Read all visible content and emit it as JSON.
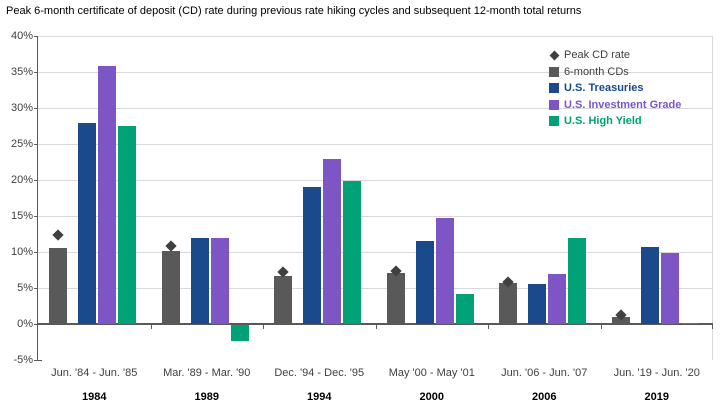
{
  "title": "Peak 6-month certificate of deposit (CD) rate during previous rate hiking cycles and subsequent 12-month total returns",
  "colors": {
    "peak_diamond": "#404040",
    "cd_bar": "#595959",
    "treasuries": "#1b4a8c",
    "investment_grade": "#7d55c5",
    "high_yield": "#00a176",
    "gridline": "#d9d9d9",
    "zero_line": "#595959",
    "axis_text": "#404040"
  },
  "legend": [
    {
      "label": "Peak CD rate",
      "marker": "diamond",
      "color": "#404040",
      "text_color": "#404040",
      "bold": false
    },
    {
      "label": "6-month CDs",
      "marker": "square",
      "color": "#595959",
      "text_color": "#404040",
      "bold": false
    },
    {
      "label": "U.S. Treasuries",
      "marker": "square",
      "color": "#1b4a8c",
      "text_color": "#1b4a8c",
      "bold": true
    },
    {
      "label": "U.S. Investment Grade",
      "marker": "square",
      "color": "#7d55c5",
      "text_color": "#7d55c5",
      "bold": true
    },
    {
      "label": "U.S. High Yield",
      "marker": "square",
      "color": "#00a176",
      "text_color": "#00a176",
      "bold": true
    }
  ],
  "chart_data": {
    "type": "bar",
    "title": "Peak 6-month certificate of deposit (CD) rate during previous rate hiking cycles and subsequent 12-month total returns",
    "xlabel": "",
    "ylabel": "",
    "ylim": [
      -5,
      40
    ],
    "y_step": 5,
    "grid": true,
    "legend_position": "top-right",
    "y_ticks": [
      "40%",
      "35%",
      "30%",
      "25%",
      "20%",
      "15%",
      "10%",
      "5%",
      "0%",
      "-5%"
    ],
    "categories": [
      {
        "range": "Jun. '84 - Jun. '85",
        "year": "1984"
      },
      {
        "range": "Mar. '89 - Mar. '90",
        "year": "1989"
      },
      {
        "range": "Dec. '94 - Dec. '95",
        "year": "1994"
      },
      {
        "range": "May '00 - May '01",
        "year": "2000"
      },
      {
        "range": "Jun. '06 - Jun. '07",
        "year": "2006"
      },
      {
        "range": "Jun. '19 - Jun. '20",
        "year": "2019"
      }
    ],
    "series": [
      {
        "name": "Peak CD rate",
        "style": "diamond-point",
        "values": [
          12.4,
          10.9,
          7.2,
          7.4,
          5.8,
          1.2
        ]
      },
      {
        "name": "6-month CDs",
        "style": "bar",
        "values": [
          10.6,
          10.2,
          6.6,
          7.1,
          5.7,
          1.0
        ]
      },
      {
        "name": "U.S. Treasuries",
        "style": "bar",
        "values": [
          27.9,
          11.9,
          19.0,
          11.5,
          5.6,
          10.7
        ]
      },
      {
        "name": "U.S. Investment Grade",
        "style": "bar",
        "values": [
          35.8,
          12.0,
          22.9,
          14.7,
          7.0,
          9.8
        ]
      },
      {
        "name": "U.S. High Yield",
        "style": "bar",
        "values": [
          27.5,
          -2.2,
          19.8,
          4.1,
          11.9,
          0.2
        ]
      }
    ]
  }
}
